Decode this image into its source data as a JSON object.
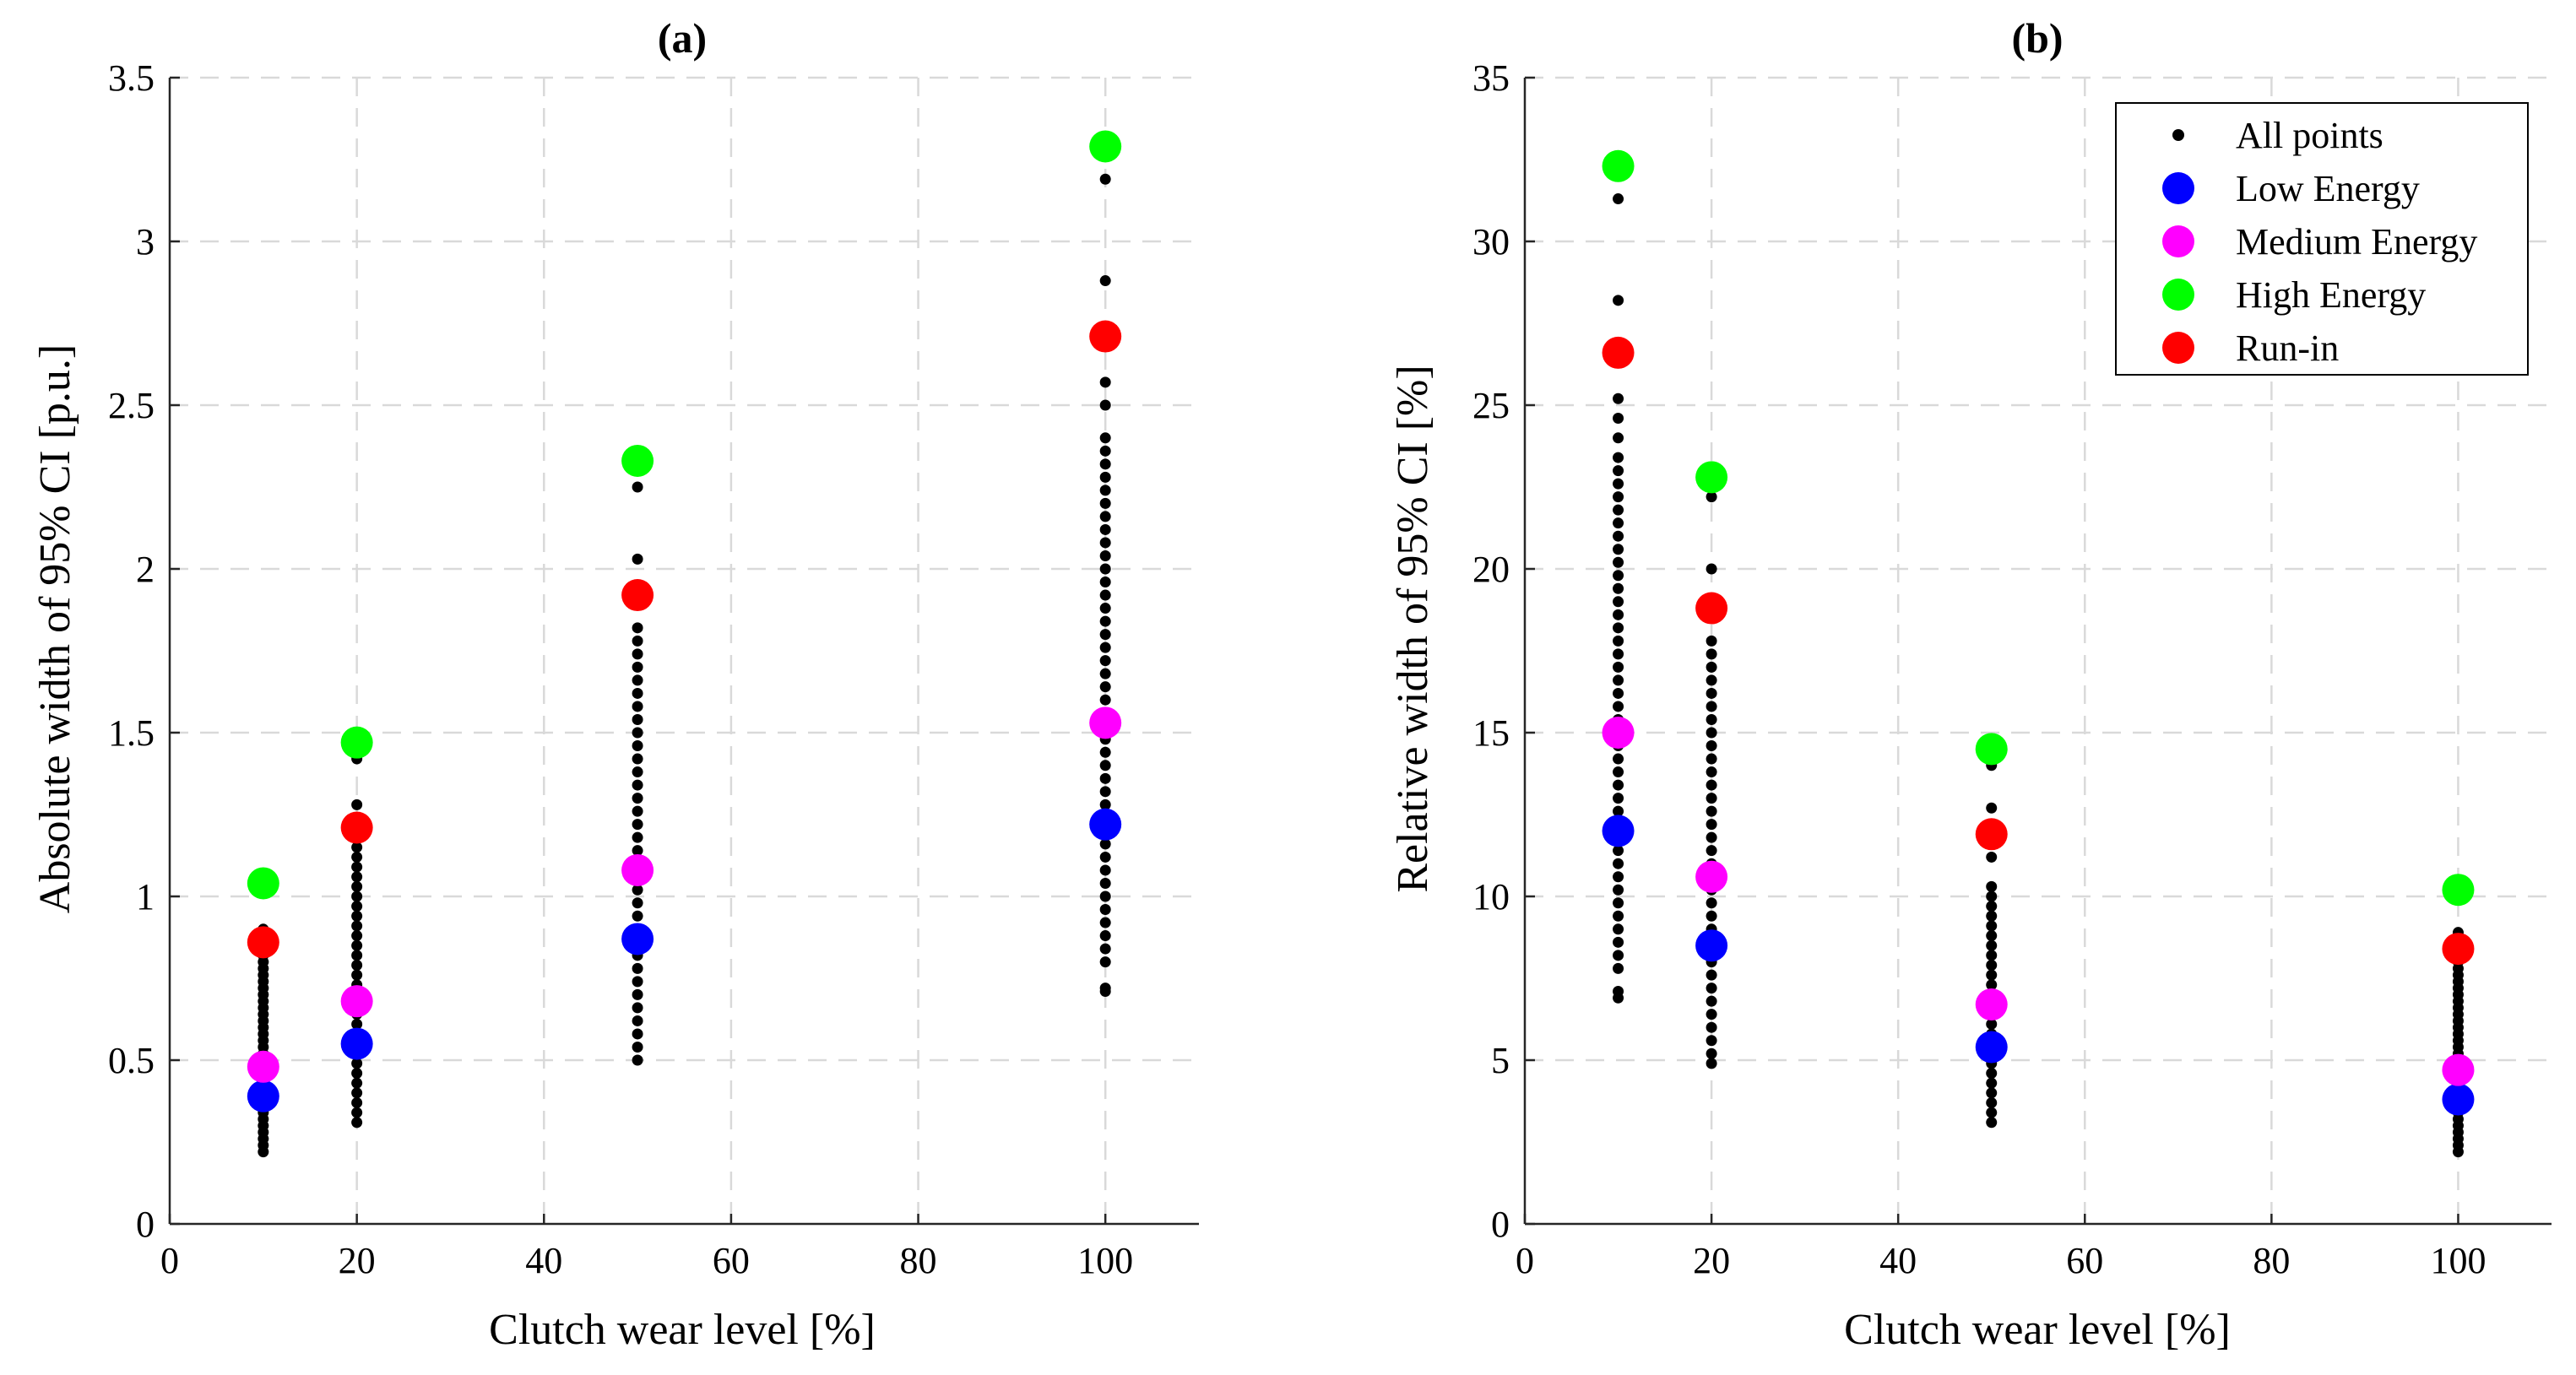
{
  "chart_data": [
    {
      "type": "scatter",
      "title": "(a)",
      "xlabel": "Clutch wear level [%]",
      "ylabel": "Absolute width of 95% CI [p.u.]",
      "xlim": [
        0,
        110
      ],
      "ylim": [
        0,
        3.5
      ],
      "xticks": [
        0,
        20,
        40,
        60,
        80,
        100
      ],
      "yticks": [
        0,
        0.5,
        1,
        1.5,
        2,
        2.5,
        3,
        3.5
      ],
      "xtick_labels": [
        "0",
        "20",
        "40",
        "60",
        "80",
        "100"
      ],
      "ytick_labels": [
        "0",
        "0.5",
        "1",
        "1.5",
        "2",
        "2.5",
        "3",
        "3.5"
      ],
      "grid": true,
      "all_points": [
        {
          "x": 10,
          "values": [
            0.22,
            0.24,
            0.26,
            0.28,
            0.3,
            0.32,
            0.34,
            0.36,
            0.4,
            0.42,
            0.44,
            0.46,
            0.5,
            0.52,
            0.54,
            0.56,
            0.58,
            0.6,
            0.62,
            0.64,
            0.66,
            0.68,
            0.7,
            0.72,
            0.74,
            0.76,
            0.78,
            0.8,
            0.82,
            0.84,
            0.9
          ]
        },
        {
          "x": 20,
          "values": [
            0.31,
            0.34,
            0.37,
            0.4,
            0.43,
            0.46,
            0.49,
            0.52,
            0.58,
            0.61,
            0.64,
            0.67,
            0.7,
            0.73,
            0.76,
            0.79,
            0.82,
            0.85,
            0.88,
            0.91,
            0.94,
            0.97,
            1.0,
            1.03,
            1.06,
            1.09,
            1.12,
            1.15,
            1.18,
            1.24,
            1.28,
            1.42
          ]
        },
        {
          "x": 50,
          "values": [
            0.5,
            0.54,
            0.58,
            0.62,
            0.66,
            0.7,
            0.74,
            0.78,
            0.82,
            0.9,
            0.94,
            0.98,
            1.02,
            1.06,
            1.1,
            1.14,
            1.18,
            1.22,
            1.26,
            1.3,
            1.34,
            1.38,
            1.42,
            1.46,
            1.5,
            1.54,
            1.58,
            1.62,
            1.66,
            1.7,
            1.74,
            1.78,
            1.82,
            2.03,
            2.25
          ]
        },
        {
          "x": 100,
          "values": [
            0.71,
            0.72,
            0.8,
            0.84,
            0.88,
            0.92,
            0.96,
            1.0,
            1.04,
            1.08,
            1.12,
            1.16,
            1.28,
            1.32,
            1.36,
            1.4,
            1.44,
            1.48,
            1.56,
            1.6,
            1.64,
            1.68,
            1.72,
            1.76,
            1.8,
            1.84,
            1.88,
            1.92,
            1.96,
            2.0,
            2.04,
            2.08,
            2.12,
            2.16,
            2.2,
            2.24,
            2.28,
            2.32,
            2.36,
            2.4,
            2.5,
            2.57,
            2.88,
            3.19
          ]
        }
      ],
      "series": [
        {
          "name": "Low Energy",
          "color": "#0000FF",
          "x": [
            10,
            20,
            50,
            100
          ],
          "y": [
            0.39,
            0.55,
            0.87,
            1.22
          ]
        },
        {
          "name": "Medium Energy",
          "color": "#FF00FF",
          "x": [
            10,
            20,
            50,
            100
          ],
          "y": [
            0.48,
            0.68,
            1.08,
            1.53
          ]
        },
        {
          "name": "High Energy",
          "color": "#00FF00",
          "x": [
            10,
            20,
            50,
            100
          ],
          "y": [
            1.04,
            1.47,
            2.33,
            3.29
          ]
        },
        {
          "name": "Run-in",
          "color": "#FF0000",
          "x": [
            10,
            20,
            50,
            100
          ],
          "y": [
            0.86,
            1.21,
            1.92,
            2.71
          ]
        }
      ]
    },
    {
      "type": "scatter",
      "title": "(b)",
      "xlabel": "Clutch wear level [%]",
      "ylabel": "Relative width of 95% CI [%]",
      "xlim": [
        0,
        110
      ],
      "ylim": [
        0,
        35
      ],
      "xticks": [
        0,
        20,
        40,
        60,
        80,
        100
      ],
      "yticks": [
        0,
        5,
        10,
        15,
        20,
        25,
        30,
        35
      ],
      "xtick_labels": [
        "0",
        "20",
        "40",
        "60",
        "80",
        "100"
      ],
      "ytick_labels": [
        "0",
        "5",
        "10",
        "15",
        "20",
        "25",
        "30",
        "35"
      ],
      "grid": true,
      "legend_location": "top-right",
      "all_points": [
        {
          "x": 10,
          "values": [
            6.9,
            7.1,
            7.8,
            8.2,
            8.6,
            9.0,
            9.4,
            9.8,
            10.2,
            10.6,
            11.0,
            11.4,
            12.6,
            13.0,
            13.4,
            13.8,
            14.2,
            14.6,
            15.4,
            15.8,
            16.2,
            16.6,
            17.0,
            17.4,
            17.8,
            18.2,
            18.6,
            19.0,
            19.4,
            19.8,
            20.2,
            20.6,
            21.0,
            21.4,
            21.8,
            22.2,
            22.6,
            23.0,
            23.4,
            24.0,
            24.6,
            25.2,
            28.2,
            31.3
          ]
        },
        {
          "x": 20,
          "values": [
            4.9,
            5.2,
            5.6,
            6.0,
            6.4,
            6.8,
            7.2,
            7.6,
            8.0,
            9.0,
            9.4,
            9.8,
            10.2,
            11.0,
            11.4,
            11.8,
            12.2,
            12.6,
            13.0,
            13.4,
            13.8,
            14.2,
            14.6,
            15.0,
            15.4,
            15.8,
            16.2,
            16.6,
            17.0,
            17.4,
            17.8,
            20.0,
            22.2
          ]
        },
        {
          "x": 50,
          "values": [
            3.1,
            3.4,
            3.7,
            4.0,
            4.3,
            4.6,
            4.9,
            5.8,
            6.1,
            6.4,
            7.0,
            7.3,
            7.6,
            7.9,
            8.2,
            8.5,
            8.8,
            9.1,
            9.4,
            9.7,
            10.0,
            10.3,
            11.2,
            12.1,
            12.7,
            14.0
          ]
        },
        {
          "x": 100,
          "values": [
            2.2,
            2.4,
            2.6,
            2.8,
            3.0,
            3.2,
            3.4,
            3.6,
            4.2,
            4.4,
            5.0,
            5.2,
            5.4,
            5.6,
            5.8,
            6.0,
            6.2,
            6.4,
            6.6,
            6.8,
            7.0,
            7.2,
            7.4,
            7.6,
            7.8,
            8.0,
            8.9
          ]
        }
      ],
      "series": [
        {
          "name": "Low Energy",
          "color": "#0000FF",
          "x": [
            10,
            20,
            50,
            100
          ],
          "y": [
            12.0,
            8.5,
            5.4,
            3.8
          ]
        },
        {
          "name": "Medium Energy",
          "color": "#FF00FF",
          "x": [
            10,
            20,
            50,
            100
          ],
          "y": [
            15.0,
            10.6,
            6.7,
            4.7
          ]
        },
        {
          "name": "High Energy",
          "color": "#00FF00",
          "x": [
            10,
            20,
            50,
            100
          ],
          "y": [
            32.3,
            22.8,
            14.5,
            10.2
          ]
        },
        {
          "name": "Run-in",
          "color": "#FF0000",
          "x": [
            10,
            20,
            50,
            100
          ],
          "y": [
            26.6,
            18.8,
            11.9,
            8.4
          ]
        }
      ],
      "legend": [
        {
          "name": "All points",
          "color": "#000000",
          "marker": "dot"
        },
        {
          "name": "Low Energy",
          "color": "#0000FF",
          "marker": "circle"
        },
        {
          "name": "Medium Energy",
          "color": "#FF00FF",
          "marker": "circle"
        },
        {
          "name": "High Energy",
          "color": "#00FF00",
          "marker": "circle"
        },
        {
          "name": "Run-in",
          "color": "#FF0000",
          "marker": "circle"
        }
      ]
    }
  ]
}
